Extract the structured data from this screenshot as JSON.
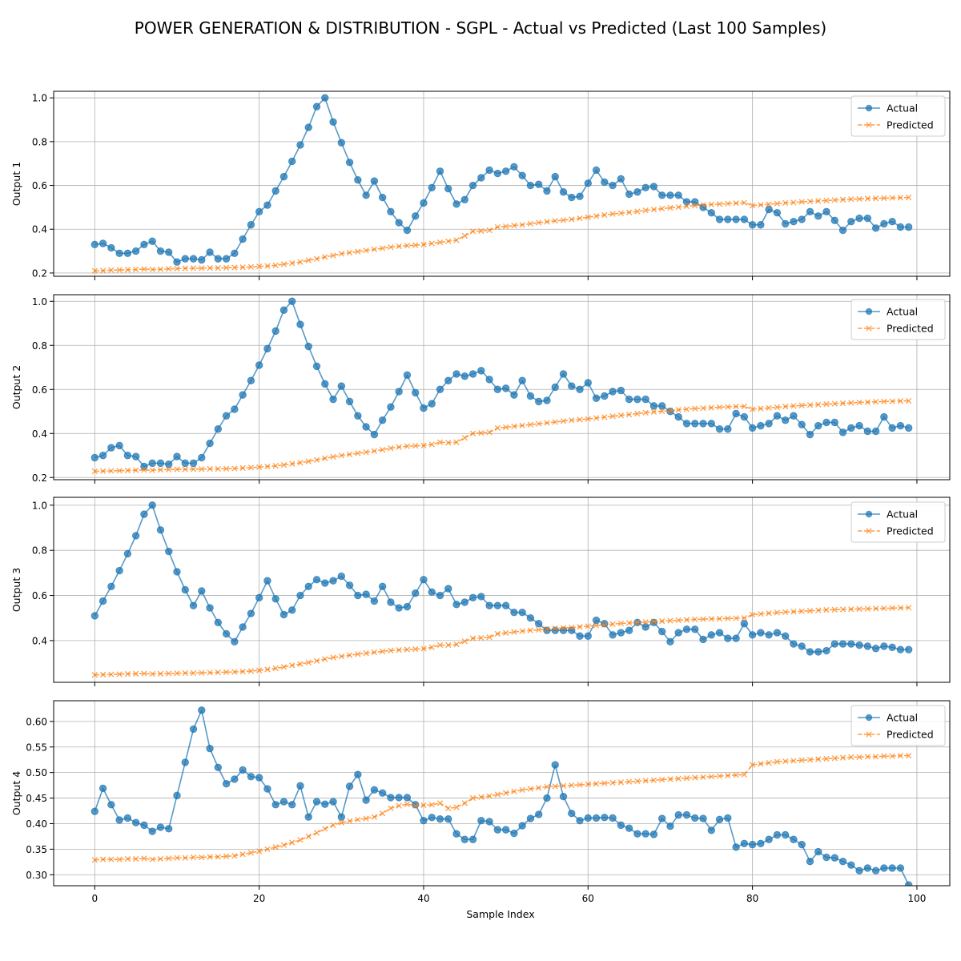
{
  "title": "POWER GENERATION & DISTRIBUTION - SGPL - Actual vs Predicted (Last 100 Samples)",
  "xlabel": "Sample Index",
  "colors": {
    "actual": "#1f77b4",
    "predicted": "#ff7f0e",
    "grid": "#b0b0b0"
  },
  "chart_data": [
    {
      "type": "line",
      "ylabel": "Output 1",
      "xlim": [
        -5,
        104
      ],
      "ylim": [
        0.185,
        1.03
      ],
      "xticks": [
        0,
        20,
        40,
        60,
        80,
        100
      ],
      "yticks": [
        0.2,
        0.4,
        0.6,
        0.8,
        1.0
      ],
      "ytick_labels": [
        "0.2",
        "0.4",
        "0.6",
        "0.8",
        "1.0"
      ],
      "grid": true,
      "legend": "top-right",
      "series": [
        {
          "name": "Actual",
          "marker": "o",
          "values": [
            0.33,
            0.335,
            0.315,
            0.29,
            0.29,
            0.3,
            0.33,
            0.345,
            0.3,
            0.295,
            0.25,
            0.265,
            0.265,
            0.26,
            0.295,
            0.265,
            0.265,
            0.29,
            0.355,
            0.42,
            0.48,
            0.51,
            0.575,
            0.64,
            0.71,
            0.785,
            0.865,
            0.96,
            1.0,
            0.89,
            0.795,
            0.705,
            0.625,
            0.555,
            0.62,
            0.545,
            0.48,
            0.43,
            0.395,
            0.46,
            0.52,
            0.59,
            0.665,
            0.585,
            0.515,
            0.535,
            0.6,
            0.635,
            0.67,
            0.655,
            0.665,
            0.685,
            0.645,
            0.6,
            0.605,
            0.575,
            0.64,
            0.57,
            0.545,
            0.55,
            0.61,
            0.67,
            0.615,
            0.6,
            0.63,
            0.56,
            0.57,
            0.59,
            0.595,
            0.555,
            0.555,
            0.555,
            0.525,
            0.525,
            0.5,
            0.475,
            0.445,
            0.445,
            0.445,
            0.445,
            0.42,
            0.42,
            0.49,
            0.475,
            0.425,
            0.435,
            0.445,
            0.48,
            0.46,
            0.48,
            0.44,
            0.395,
            0.435,
            0.45,
            0.45,
            0.405,
            0.425,
            0.435,
            0.41,
            0.41
          ]
        },
        {
          "name": "Predicted",
          "marker": "x",
          "values": [
            0.21,
            0.211,
            0.213,
            0.214,
            0.215,
            0.216,
            0.218,
            0.216,
            0.217,
            0.219,
            0.22,
            0.221,
            0.222,
            0.222,
            0.223,
            0.223,
            0.224,
            0.225,
            0.226,
            0.228,
            0.23,
            0.232,
            0.235,
            0.24,
            0.245,
            0.25,
            0.258,
            0.265,
            0.273,
            0.28,
            0.288,
            0.293,
            0.298,
            0.303,
            0.308,
            0.313,
            0.318,
            0.322,
            0.325,
            0.327,
            0.33,
            0.335,
            0.34,
            0.345,
            0.35,
            0.37,
            0.39,
            0.392,
            0.395,
            0.41,
            0.413,
            0.417,
            0.42,
            0.425,
            0.43,
            0.434,
            0.438,
            0.441,
            0.445,
            0.45,
            0.455,
            0.46,
            0.465,
            0.47,
            0.473,
            0.477,
            0.481,
            0.486,
            0.49,
            0.494,
            0.498,
            0.501,
            0.505,
            0.508,
            0.511,
            0.513,
            0.515,
            0.517,
            0.519,
            0.521,
            0.508,
            0.511,
            0.514,
            0.517,
            0.52,
            0.522,
            0.525,
            0.527,
            0.529,
            0.531,
            0.533,
            0.535,
            0.537,
            0.538,
            0.54,
            0.541,
            0.542,
            0.543,
            0.544,
            0.545
          ]
        }
      ]
    },
    {
      "type": "line",
      "ylabel": "Output 2",
      "xlim": [
        -5,
        104
      ],
      "ylim": [
        0.19,
        1.03
      ],
      "xticks": [
        0,
        20,
        40,
        60,
        80,
        100
      ],
      "yticks": [
        0.2,
        0.4,
        0.6,
        0.8,
        1.0
      ],
      "ytick_labels": [
        "0.2",
        "0.4",
        "0.6",
        "0.8",
        "1.0"
      ],
      "grid": true,
      "legend": "top-right",
      "series": [
        {
          "name": "Actual",
          "marker": "o",
          "values": [
            0.29,
            0.3,
            0.335,
            0.345,
            0.3,
            0.295,
            0.25,
            0.265,
            0.265,
            0.26,
            0.295,
            0.265,
            0.265,
            0.29,
            0.355,
            0.42,
            0.48,
            0.51,
            0.575,
            0.64,
            0.71,
            0.785,
            0.865,
            0.96,
            1.0,
            0.895,
            0.795,
            0.705,
            0.625,
            0.555,
            0.615,
            0.545,
            0.48,
            0.43,
            0.395,
            0.46,
            0.52,
            0.59,
            0.665,
            0.585,
            0.515,
            0.535,
            0.6,
            0.64,
            0.67,
            0.66,
            0.67,
            0.685,
            0.645,
            0.6,
            0.605,
            0.575,
            0.64,
            0.57,
            0.545,
            0.55,
            0.61,
            0.67,
            0.615,
            0.6,
            0.63,
            0.56,
            0.57,
            0.59,
            0.595,
            0.555,
            0.555,
            0.555,
            0.525,
            0.525,
            0.5,
            0.475,
            0.445,
            0.445,
            0.445,
            0.445,
            0.42,
            0.42,
            0.49,
            0.475,
            0.425,
            0.435,
            0.445,
            0.48,
            0.46,
            0.48,
            0.44,
            0.395,
            0.435,
            0.45,
            0.45,
            0.405,
            0.425,
            0.435,
            0.41,
            0.41,
            0.475,
            0.425,
            0.435,
            0.425
          ]
        },
        {
          "name": "Predicted",
          "marker": "x",
          "values": [
            0.228,
            0.229,
            0.23,
            0.231,
            0.232,
            0.233,
            0.234,
            0.233,
            0.235,
            0.236,
            0.237,
            0.237,
            0.238,
            0.238,
            0.239,
            0.239,
            0.24,
            0.241,
            0.243,
            0.245,
            0.247,
            0.25,
            0.253,
            0.257,
            0.262,
            0.267,
            0.273,
            0.28,
            0.287,
            0.294,
            0.3,
            0.305,
            0.31,
            0.315,
            0.32,
            0.326,
            0.333,
            0.338,
            0.342,
            0.344,
            0.345,
            0.35,
            0.36,
            0.358,
            0.36,
            0.38,
            0.4,
            0.402,
            0.405,
            0.425,
            0.428,
            0.432,
            0.436,
            0.44,
            0.444,
            0.448,
            0.452,
            0.456,
            0.46,
            0.463,
            0.466,
            0.47,
            0.474,
            0.478,
            0.482,
            0.486,
            0.49,
            0.494,
            0.498,
            0.501,
            0.504,
            0.507,
            0.51,
            0.513,
            0.515,
            0.517,
            0.519,
            0.521,
            0.522,
            0.523,
            0.51,
            0.513,
            0.516,
            0.519,
            0.522,
            0.525,
            0.527,
            0.529,
            0.531,
            0.533,
            0.535,
            0.537,
            0.539,
            0.541,
            0.542,
            0.544,
            0.545,
            0.546,
            0.547,
            0.548
          ]
        }
      ]
    },
    {
      "type": "line",
      "ylabel": "Output 3",
      "xlim": [
        -5,
        104
      ],
      "ylim": [
        0.215,
        1.035
      ],
      "xticks": [
        0,
        20,
        40,
        60,
        80,
        100
      ],
      "yticks": [
        0.4,
        0.6,
        0.8,
        1.0
      ],
      "ytick_labels": [
        "0.4",
        "0.6",
        "0.8",
        "1.0"
      ],
      "grid": true,
      "legend": "top-right",
      "series": [
        {
          "name": "Actual",
          "marker": "o",
          "values": [
            0.51,
            0.575,
            0.64,
            0.71,
            0.785,
            0.865,
            0.96,
            1.0,
            0.89,
            0.795,
            0.705,
            0.625,
            0.555,
            0.62,
            0.545,
            0.48,
            0.43,
            0.395,
            0.46,
            0.52,
            0.59,
            0.665,
            0.585,
            0.515,
            0.535,
            0.6,
            0.64,
            0.67,
            0.655,
            0.665,
            0.685,
            0.645,
            0.6,
            0.605,
            0.575,
            0.64,
            0.57,
            0.545,
            0.55,
            0.61,
            0.67,
            0.615,
            0.6,
            0.63,
            0.56,
            0.57,
            0.59,
            0.595,
            0.555,
            0.555,
            0.555,
            0.525,
            0.525,
            0.5,
            0.475,
            0.445,
            0.445,
            0.445,
            0.445,
            0.42,
            0.42,
            0.49,
            0.475,
            0.425,
            0.435,
            0.445,
            0.48,
            0.46,
            0.48,
            0.44,
            0.395,
            0.435,
            0.45,
            0.45,
            0.405,
            0.425,
            0.435,
            0.41,
            0.41,
            0.475,
            0.425,
            0.435,
            0.425,
            0.435,
            0.42,
            0.385,
            0.375,
            0.35,
            0.35,
            0.355,
            0.385,
            0.385,
            0.385,
            0.38,
            0.375,
            0.365,
            0.375,
            0.37,
            0.36,
            0.36
          ]
        },
        {
          "name": "Predicted",
          "marker": "x",
          "values": [
            0.248,
            0.249,
            0.25,
            0.251,
            0.252,
            0.253,
            0.254,
            0.252,
            0.253,
            0.254,
            0.255,
            0.256,
            0.256,
            0.257,
            0.258,
            0.259,
            0.26,
            0.261,
            0.263,
            0.265,
            0.268,
            0.272,
            0.277,
            0.283,
            0.29,
            0.296,
            0.303,
            0.31,
            0.318,
            0.325,
            0.33,
            0.335,
            0.34,
            0.344,
            0.348,
            0.352,
            0.356,
            0.358,
            0.36,
            0.362,
            0.364,
            0.37,
            0.38,
            0.38,
            0.383,
            0.397,
            0.41,
            0.412,
            0.415,
            0.43,
            0.434,
            0.438,
            0.442,
            0.445,
            0.448,
            0.451,
            0.454,
            0.456,
            0.458,
            0.461,
            0.464,
            0.467,
            0.47,
            0.473,
            0.476,
            0.478,
            0.48,
            0.482,
            0.484,
            0.486,
            0.488,
            0.49,
            0.492,
            0.494,
            0.495,
            0.496,
            0.497,
            0.498,
            0.499,
            0.5,
            0.515,
            0.518,
            0.521,
            0.524,
            0.526,
            0.528,
            0.53,
            0.532,
            0.534,
            0.536,
            0.537,
            0.538,
            0.539,
            0.54,
            0.541,
            0.542,
            0.543,
            0.544,
            0.545,
            0.546
          ]
        }
      ]
    },
    {
      "type": "line",
      "ylabel": "Output 4",
      "xlim": [
        -5,
        104
      ],
      "ylim": [
        0.2785,
        0.6405
      ],
      "xticks": [
        0,
        20,
        40,
        60,
        80,
        100
      ],
      "yticks": [
        0.3,
        0.35,
        0.4,
        0.45,
        0.5,
        0.55,
        0.6
      ],
      "ytick_labels": [
        "0.30",
        "0.35",
        "0.40",
        "0.45",
        "0.50",
        "0.55",
        "0.60"
      ],
      "grid": true,
      "legend": "top-right",
      "series": [
        {
          "name": "Actual",
          "marker": "o",
          "values": [
            0.424,
            0.469,
            0.437,
            0.407,
            0.411,
            0.402,
            0.397,
            0.385,
            0.393,
            0.39,
            0.455,
            0.52,
            0.585,
            0.622,
            0.547,
            0.51,
            0.478,
            0.487,
            0.505,
            0.492,
            0.49,
            0.468,
            0.437,
            0.443,
            0.437,
            0.474,
            0.413,
            0.443,
            0.438,
            0.443,
            0.413,
            0.473,
            0.496,
            0.446,
            0.466,
            0.46,
            0.451,
            0.451,
            0.451,
            0.437,
            0.406,
            0.412,
            0.409,
            0.409,
            0.38,
            0.369,
            0.369,
            0.406,
            0.404,
            0.388,
            0.388,
            0.381,
            0.396,
            0.41,
            0.418,
            0.45,
            0.515,
            0.453,
            0.42,
            0.406,
            0.411,
            0.411,
            0.412,
            0.411,
            0.397,
            0.391,
            0.38,
            0.38,
            0.379,
            0.41,
            0.395,
            0.417,
            0.417,
            0.411,
            0.41,
            0.387,
            0.408,
            0.411,
            0.354,
            0.361,
            0.359,
            0.361,
            0.369,
            0.378,
            0.378,
            0.369,
            0.359,
            0.326,
            0.345,
            0.334,
            0.333,
            0.326,
            0.319,
            0.308,
            0.313,
            0.308,
            0.313,
            0.313,
            0.313,
            0.28
          ]
        },
        {
          "name": "Predicted",
          "marker": "x",
          "values": [
            0.329,
            0.33,
            0.33,
            0.33,
            0.331,
            0.331,
            0.332,
            0.33,
            0.331,
            0.332,
            0.333,
            0.333,
            0.334,
            0.334,
            0.335,
            0.335,
            0.336,
            0.337,
            0.34,
            0.343,
            0.346,
            0.35,
            0.354,
            0.358,
            0.363,
            0.368,
            0.375,
            0.382,
            0.39,
            0.397,
            0.402,
            0.405,
            0.408,
            0.41,
            0.413,
            0.42,
            0.43,
            0.435,
            0.438,
            0.435,
            0.436,
            0.437,
            0.44,
            0.43,
            0.432,
            0.44,
            0.45,
            0.452,
            0.454,
            0.457,
            0.46,
            0.463,
            0.466,
            0.468,
            0.47,
            0.472,
            0.473,
            0.474,
            0.475,
            0.476,
            0.477,
            0.478,
            0.479,
            0.48,
            0.481,
            0.482,
            0.483,
            0.484,
            0.485,
            0.486,
            0.487,
            0.488,
            0.489,
            0.49,
            0.491,
            0.492,
            0.493,
            0.494,
            0.495,
            0.496,
            0.515,
            0.517,
            0.519,
            0.521,
            0.522,
            0.523,
            0.524,
            0.525,
            0.526,
            0.527,
            0.528,
            0.529,
            0.53,
            0.53,
            0.531,
            0.531,
            0.532,
            0.532,
            0.533,
            0.533
          ]
        }
      ]
    }
  ]
}
